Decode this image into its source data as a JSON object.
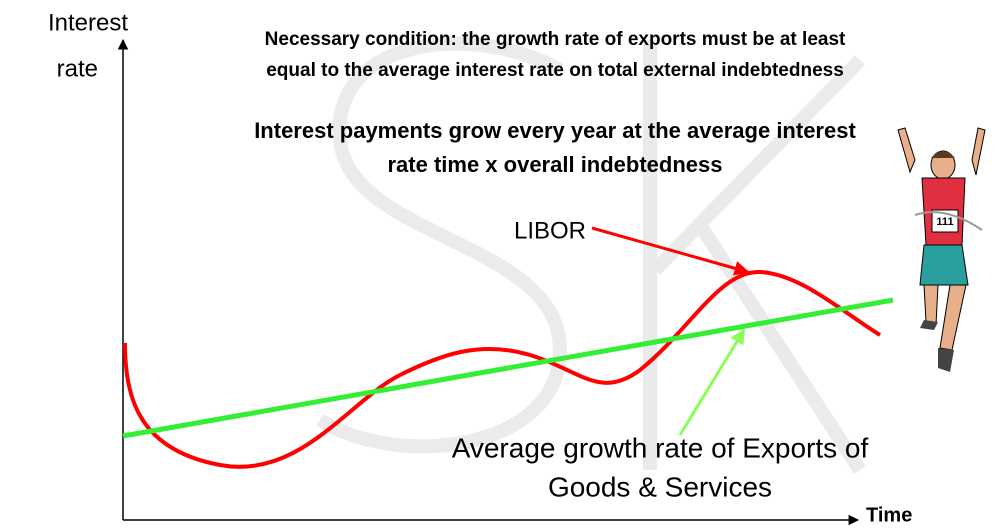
{
  "y_axis_label": [
    "Interest",
    "rate"
  ],
  "x_axis_label": "Time",
  "notes": [
    [
      "Necessary condition: the growth rate of exports must be at least",
      "equal to the average interest rate on total external indebtedness"
    ],
    [
      "Interest payments grow every year at the average interest",
      "rate time x overall indebtedness"
    ]
  ],
  "curves": [
    {
      "label": [
        "LIBOR"
      ],
      "color": "#ff0000"
    },
    {
      "label": [
        "Average growth rate of Exports of",
        "Goods & Services"
      ],
      "color": "#33ee33"
    }
  ],
  "runner_bib": "111"
}
